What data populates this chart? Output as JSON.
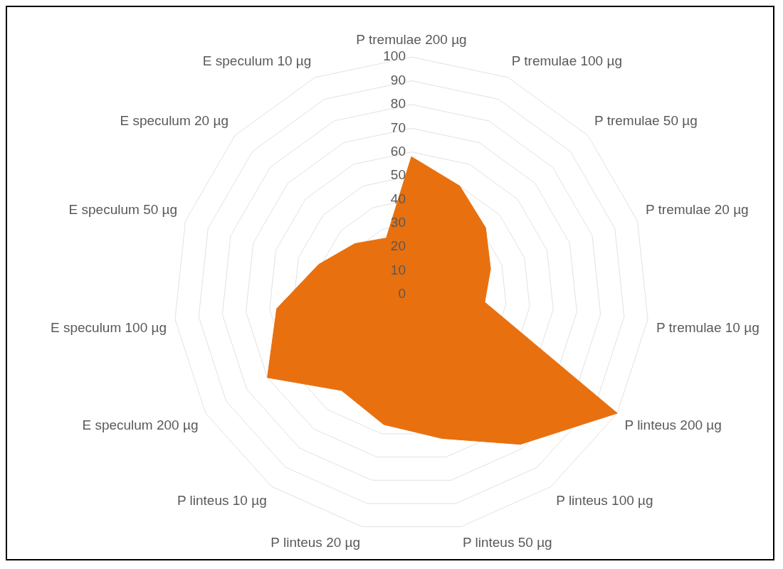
{
  "chart_data": {
    "type": "radar",
    "categories": [
      "P tremulae 200 µg",
      "P tremulae 100 µg",
      "P tremulae 50 µg",
      "P tremulae 20 µg",
      "P tremulae 10 µg",
      "P linteus 200 µg",
      "P linteus 100 µg",
      "P linteus 50 µg",
      "P linteus 20 µg",
      "P linteus 10 µg",
      "E speculum 200 µg",
      "E speculum 100 µg",
      "E speculum 50 µg",
      "E speculum 20 µg",
      "E speculum 10 µg"
    ],
    "series": [
      {
        "color": "#e8700f",
        "values": [
          58,
          50,
          42,
          35,
          31,
          100,
          78,
          62,
          56,
          50,
          70,
          57,
          41,
          32,
          26
        ]
      }
    ],
    "ylim": [
      0,
      100
    ],
    "yticks": [
      0,
      10,
      20,
      30,
      40,
      50,
      60,
      70,
      80,
      90,
      100
    ],
    "grid": true,
    "legend": false,
    "marker": "none"
  }
}
